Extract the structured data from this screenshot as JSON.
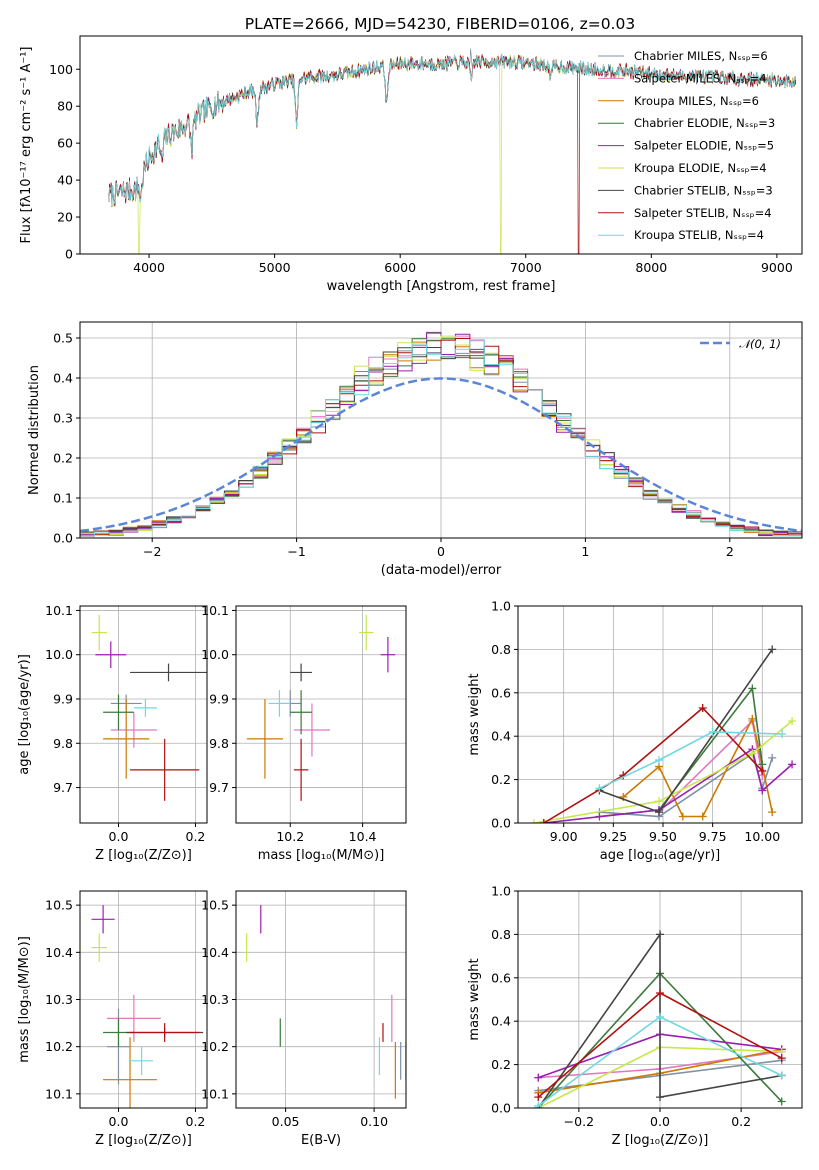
{
  "title": "PLATE=2666, MJD=54230, FIBERID=0106, z=0.03",
  "colors": {
    "Chabrier MILES": "#7f8fa6",
    "Salpeter MILES": "#e377c2",
    "Kroupa MILES": "#cc7a00",
    "Chabrier ELODIE": "#3a7a3a",
    "Salpeter ELODIE": "#9a1fb0",
    "Kroupa ELODIE": "#c6e84a",
    "Chabrier STELIB": "#444444",
    "Salpeter STELIB": "#b01010",
    "Kroupa STELIB": "#6fd8e0"
  },
  "chart_data": [
    {
      "id": "spectrum",
      "type": "line",
      "title": "PLATE=2666, MJD=54230, FIBERID=0106, z=0.03",
      "xlabel": "wavelength [Angstrom, rest frame]",
      "ylabel": "Flux [fλ10⁻¹⁷ erg cm⁻² s⁻¹ A⁻¹]",
      "xlim": [
        3450,
        9200
      ],
      "ylim": [
        0,
        118
      ],
      "xticks": [
        4000,
        5000,
        6000,
        7000,
        8000,
        9000
      ],
      "yticks": [
        0,
        20,
        40,
        60,
        80,
        100
      ],
      "grid": false,
      "legend_position": "top-right",
      "legend": [
        "Chabrier MILES, N_SSP=6",
        "Salpeter MILES, N_SSP=4",
        "Kroupa MILES, N_SSP=6",
        "Chabrier ELODIE, N_SSP=3",
        "Salpeter ELODIE, N_SSP=5",
        "Kroupa ELODIE, N_SSP=4",
        "Chabrier STELIB, N_SSP=3",
        "Salpeter STELIB, N_SSP=4",
        "Kroupa STELIB, N_SSP=4"
      ],
      "continuum": {
        "wavelength": [
          3680,
          3900,
          4000,
          4100,
          4300,
          4500,
          4800,
          5000,
          5200,
          5500,
          5800,
          6000,
          6300,
          6600,
          6900,
          7200,
          7500,
          7800,
          8100,
          8400,
          8700,
          9000,
          9150
        ],
        "flux": [
          32,
          35,
          52,
          62,
          70,
          80,
          88,
          92,
          95,
          97,
          101,
          103,
          103,
          104,
          104,
          102,
          100,
          99,
          97,
          96,
          95,
          94,
          93
        ]
      },
      "absorption_features": [
        {
          "wavelength": 3934,
          "depth": 10
        },
        {
          "wavelength": 4102,
          "depth": 12
        },
        {
          "wavelength": 4340,
          "depth": 15
        },
        {
          "wavelength": 4861,
          "depth": 18
        },
        {
          "wavelength": 5175,
          "depth": 25
        },
        {
          "wavelength": 5893,
          "depth": 20
        },
        {
          "wavelength": 6563,
          "depth": 10
        },
        {
          "wavelength": 7200,
          "depth": 6
        }
      ],
      "emission_features": [
        {
          "wavelength": 6563,
          "height": 15
        }
      ],
      "dropouts": [
        {
          "wavelength": 3920,
          "color": "Kroupa ELODIE"
        },
        {
          "wavelength": 6800,
          "color": "Kroupa ELODIE"
        },
        {
          "wavelength": 7420,
          "color": "Salpeter STELIB"
        }
      ]
    },
    {
      "id": "residuals",
      "type": "histogram",
      "xlabel": "(data-model)/error",
      "ylabel": "Normed distribution",
      "xlim": [
        -2.5,
        2.5
      ],
      "ylim": [
        0,
        0.54
      ],
      "xticks": [
        -2,
        -1,
        0,
        1,
        2
      ],
      "yticks": [
        0.0,
        0.1,
        0.2,
        0.3,
        0.4,
        0.5
      ],
      "grid": true,
      "legend_position": "top-right",
      "legend": [
        "𝒩(0, 1)"
      ],
      "bin_width": 0.1,
      "approx_peak": 0.48,
      "approx_width": 0.85,
      "series": [
        "Chabrier MILES",
        "Salpeter MILES",
        "Kroupa MILES",
        "Chabrier ELODIE",
        "Salpeter ELODIE",
        "Kroupa ELODIE",
        "Chabrier STELIB",
        "Salpeter STELIB",
        "Kroupa STELIB"
      ],
      "reference": {
        "name": "𝒩(0, 1)",
        "mean": 0,
        "sigma": 1,
        "color": "#5b86d6"
      }
    },
    {
      "id": "age_vs_Z",
      "type": "scatter",
      "xlabel": "Z [log₁₀(Z/Z⊙)]",
      "ylabel": "age  [log₁₀(age/yr)]",
      "xlim": [
        -0.1,
        0.23
      ],
      "ylim": [
        9.62,
        10.11
      ],
      "xticks": [
        0.0,
        0.2
      ],
      "yticks": [
        9.7,
        9.8,
        9.9,
        10.0,
        10.1
      ],
      "grid": true,
      "points": [
        {
          "series": "Chabrier MILES",
          "x": 0.02,
          "y": 9.89,
          "xerr": 0.04,
          "yerr": 0.02
        },
        {
          "series": "Salpeter MILES",
          "x": 0.04,
          "y": 9.83,
          "xerr": 0.06,
          "yerr": 0.04
        },
        {
          "series": "Kroupa MILES",
          "x": 0.02,
          "y": 9.81,
          "xerr": 0.06,
          "yerr": 0.09
        },
        {
          "series": "Chabrier ELODIE",
          "x": 0.0,
          "y": 9.87,
          "xerr": 0.04,
          "yerr": 0.04
        },
        {
          "series": "Salpeter ELODIE",
          "x": -0.02,
          "y": 10.0,
          "xerr": 0.04,
          "yerr": 0.03
        },
        {
          "series": "Kroupa ELODIE",
          "x": -0.05,
          "y": 10.05,
          "xerr": 0.02,
          "yerr": 0.04
        },
        {
          "series": "Chabrier STELIB",
          "x": 0.13,
          "y": 9.96,
          "xerr": 0.1,
          "yerr": 0.02
        },
        {
          "series": "Salpeter STELIB",
          "x": 0.12,
          "y": 9.74,
          "xerr": 0.09,
          "yerr": 0.07
        },
        {
          "series": "Kroupa STELIB",
          "x": 0.07,
          "y": 9.88,
          "xerr": 0.03,
          "yerr": 0.02
        }
      ]
    },
    {
      "id": "age_vs_mass",
      "type": "scatter",
      "xlabel": "mass [log₁₀(M/M⊙)]",
      "ylabel": "",
      "xlim": [
        10.05,
        10.52
      ],
      "ylim": [
        9.62,
        10.11
      ],
      "xticks": [
        10.2,
        10.4
      ],
      "yticks": [
        9.7,
        9.8,
        9.9,
        10.0,
        10.1
      ],
      "grid": true,
      "points": [
        {
          "series": "Chabrier MILES",
          "x": 10.2,
          "y": 9.89,
          "xerr": 0.03,
          "yerr": 0.03
        },
        {
          "series": "Salpeter MILES",
          "x": 10.26,
          "y": 9.83,
          "xerr": 0.05,
          "yerr": 0.06
        },
        {
          "series": "Kroupa MILES",
          "x": 10.13,
          "y": 9.81,
          "xerr": 0.05,
          "yerr": 0.09
        },
        {
          "series": "Chabrier ELODIE",
          "x": 10.23,
          "y": 9.87,
          "xerr": 0.03,
          "yerr": 0.05
        },
        {
          "series": "Salpeter ELODIE",
          "x": 10.47,
          "y": 10.0,
          "xerr": 0.02,
          "yerr": 0.04
        },
        {
          "series": "Kroupa ELODIE",
          "x": 10.41,
          "y": 10.05,
          "xerr": 0.02,
          "yerr": 0.04
        },
        {
          "series": "Chabrier STELIB",
          "x": 10.23,
          "y": 9.96,
          "xerr": 0.03,
          "yerr": 0.02
        },
        {
          "series": "Salpeter STELIB",
          "x": 10.23,
          "y": 9.74,
          "xerr": 0.02,
          "yerr": 0.07
        },
        {
          "series": "Kroupa STELIB",
          "x": 10.17,
          "y": 9.89,
          "xerr": 0.03,
          "yerr": 0.03
        }
      ]
    },
    {
      "id": "mass_weight_vs_age",
      "type": "line",
      "xlabel": "age  [log₁₀(age/yr)]",
      "ylabel": "mass weight",
      "xlim": [
        8.77,
        10.2
      ],
      "ylim": [
        0,
        1.0
      ],
      "xticks": [
        9.0,
        9.25,
        9.5,
        9.75,
        10.0
      ],
      "yticks": [
        0.0,
        0.2,
        0.4,
        0.6,
        0.8,
        1.0
      ],
      "grid": true,
      "series": [
        {
          "name": "Chabrier MILES",
          "points": [
            [
              9.18,
              0.05
            ],
            [
              9.48,
              0.03
            ],
            [
              9.95,
              0.32
            ],
            [
              10.0,
              0.16
            ],
            [
              10.05,
              0.3
            ]
          ]
        },
        {
          "name": "Salpeter MILES",
          "points": [
            [
              9.48,
              0.05
            ],
            [
              9.95,
              0.47
            ],
            [
              10.0,
              0.22
            ]
          ]
        },
        {
          "name": "Kroupa MILES",
          "points": [
            [
              9.3,
              0.12
            ],
            [
              9.48,
              0.26
            ],
            [
              9.6,
              0.03
            ],
            [
              9.7,
              0.03
            ],
            [
              9.95,
              0.48
            ],
            [
              10.05,
              0.05
            ]
          ]
        },
        {
          "name": "Chabrier ELODIE",
          "points": [
            [
              9.18,
              0.03
            ],
            [
              9.48,
              0.06
            ],
            [
              9.95,
              0.62
            ],
            [
              10.0,
              0.27
            ]
          ]
        },
        {
          "name": "Salpeter ELODIE",
          "points": [
            [
              8.9,
              0.0
            ],
            [
              9.48,
              0.06
            ],
            [
              9.95,
              0.34
            ],
            [
              10.0,
              0.15
            ],
            [
              10.15,
              0.27
            ]
          ]
        },
        {
          "name": "Kroupa ELODIE",
          "points": [
            [
              8.85,
              0.0
            ],
            [
              9.48,
              0.1
            ],
            [
              9.95,
              0.32
            ],
            [
              10.15,
              0.47
            ]
          ]
        },
        {
          "name": "Chabrier STELIB",
          "points": [
            [
              9.18,
              0.15
            ],
            [
              9.48,
              0.05
            ],
            [
              10.05,
              0.8
            ]
          ]
        },
        {
          "name": "Salpeter STELIB",
          "points": [
            [
              8.9,
              0.0
            ],
            [
              9.3,
              0.22
            ],
            [
              9.7,
              0.53
            ],
            [
              10.0,
              0.24
            ]
          ]
        },
        {
          "name": "Kroupa STELIB",
          "points": [
            [
              9.18,
              0.16
            ],
            [
              9.48,
              0.29
            ],
            [
              9.75,
              0.42
            ],
            [
              10.1,
              0.41
            ]
          ]
        }
      ]
    },
    {
      "id": "mass_vs_Z",
      "type": "scatter",
      "xlabel": "Z [log₁₀(Z/Z⊙)]",
      "ylabel": "mass [log₁₀(M/M⊙)]",
      "xlim": [
        -0.1,
        0.23
      ],
      "ylim": [
        10.07,
        10.53
      ],
      "xticks": [
        0.0,
        0.2
      ],
      "yticks": [
        10.1,
        10.2,
        10.3,
        10.4,
        10.5
      ],
      "grid": true,
      "points": [
        {
          "series": "Chabrier MILES",
          "x": 0.0,
          "y": 10.2,
          "xerr": 0.03,
          "yerr": 0.08
        },
        {
          "series": "Salpeter MILES",
          "x": 0.04,
          "y": 10.26,
          "xerr": 0.07,
          "yerr": 0.05
        },
        {
          "series": "Kroupa MILES",
          "x": 0.03,
          "y": 10.13,
          "xerr": 0.07,
          "yerr": 0.09
        },
        {
          "series": "Chabrier ELODIE",
          "x": 0.0,
          "y": 10.23,
          "xerr": 0.04,
          "yerr": 0.03
        },
        {
          "series": "Salpeter ELODIE",
          "x": -0.04,
          "y": 10.47,
          "xerr": 0.03,
          "yerr": 0.03
        },
        {
          "series": "Kroupa ELODIE",
          "x": -0.05,
          "y": 10.41,
          "xerr": 0.02,
          "yerr": 0.03
        },
        {
          "series": "Chabrier STELIB",
          "x": 0.12,
          "y": 10.23,
          "xerr": 0.1,
          "yerr": 0.01
        },
        {
          "series": "Salpeter STELIB",
          "x": 0.12,
          "y": 10.23,
          "xerr": 0.09,
          "yerr": 0.02
        },
        {
          "series": "Kroupa STELIB",
          "x": 0.06,
          "y": 10.17,
          "xerr": 0.03,
          "yerr": 0.03
        }
      ]
    },
    {
      "id": "mass_vs_ebv",
      "type": "scatter",
      "xlabel": "E(B-V)",
      "ylabel": "",
      "xlim": [
        0.022,
        0.118
      ],
      "ylim": [
        10.07,
        10.53
      ],
      "xticks": [
        0.05,
        0.1
      ],
      "yticks": [
        10.1,
        10.2,
        10.3,
        10.4,
        10.5
      ],
      "grid": true,
      "points": [
        {
          "series": "Chabrier MILES",
          "x": 0.115,
          "y": 10.17,
          "xerr": 0.0,
          "yerr": 0.04
        },
        {
          "series": "Salpeter MILES",
          "x": 0.11,
          "y": 10.26,
          "xerr": 0.0,
          "yerr": 0.05
        },
        {
          "series": "Kroupa MILES",
          "x": 0.112,
          "y": 10.15,
          "xerr": 0.0,
          "yerr": 0.06
        },
        {
          "series": "Chabrier ELODIE",
          "x": 0.047,
          "y": 10.23,
          "xerr": 0.0,
          "yerr": 0.03
        },
        {
          "series": "Salpeter ELODIE",
          "x": 0.036,
          "y": 10.47,
          "xerr": 0.0,
          "yerr": 0.03
        },
        {
          "series": "Kroupa ELODIE",
          "x": 0.028,
          "y": 10.41,
          "xerr": 0.0,
          "yerr": 0.03
        },
        {
          "series": "Chabrier STELIB",
          "x": 0.118,
          "y": 10.17,
          "xerr": 0.0,
          "yerr": 0.04
        },
        {
          "series": "Salpeter STELIB",
          "x": 0.105,
          "y": 10.23,
          "xerr": 0.0,
          "yerr": 0.02
        },
        {
          "series": "Kroupa STELIB",
          "x": 0.103,
          "y": 10.18,
          "xerr": 0.0,
          "yerr": 0.04
        }
      ]
    },
    {
      "id": "mass_weight_vs_Z",
      "type": "line",
      "xlabel": "Z [log₁₀(Z/Z⊙)]",
      "ylabel": "mass weight",
      "xlim": [
        -0.35,
        0.35
      ],
      "ylim": [
        0,
        1.0
      ],
      "xticks": [
        -0.2,
        0.0,
        0.2
      ],
      "yticks": [
        0.0,
        0.2,
        0.4,
        0.6,
        0.8,
        1.0
      ],
      "grid": true,
      "series": [
        {
          "name": "Chabrier MILES",
          "points": [
            [
              -0.3,
              0.08
            ],
            [
              0.0,
              0.15
            ],
            [
              0.3,
              0.22
            ]
          ]
        },
        {
          "name": "Salpeter MILES",
          "points": [
            [
              -0.3,
              0.14
            ],
            [
              0.0,
              0.18
            ],
            [
              0.3,
              0.26
            ]
          ]
        },
        {
          "name": "Kroupa MILES",
          "points": [
            [
              -0.3,
              0.07
            ],
            [
              0.0,
              0.16
            ],
            [
              0.3,
              0.27
            ]
          ]
        },
        {
          "name": "Chabrier ELODIE",
          "points": [
            [
              -0.3,
              0.0
            ],
            [
              0.0,
              0.62
            ],
            [
              0.3,
              0.03
            ]
          ]
        },
        {
          "name": "Salpeter ELODIE",
          "points": [
            [
              -0.3,
              0.14
            ],
            [
              0.0,
              0.34
            ],
            [
              0.3,
              0.27
            ]
          ]
        },
        {
          "name": "Kroupa ELODIE",
          "points": [
            [
              -0.3,
              0.0
            ],
            [
              0.0,
              0.28
            ],
            [
              0.3,
              0.26
            ]
          ]
        },
        {
          "name": "Chabrier STELIB",
          "points": [
            [
              -0.3,
              0.0
            ],
            [
              0.0,
              0.8
            ],
            [
              0.0,
              0.05
            ],
            [
              0.3,
              0.15
            ]
          ]
        },
        {
          "name": "Salpeter STELIB",
          "points": [
            [
              -0.3,
              0.05
            ],
            [
              0.0,
              0.53
            ],
            [
              0.3,
              0.23
            ]
          ]
        },
        {
          "name": "Kroupa STELIB",
          "points": [
            [
              -0.3,
              0.01
            ],
            [
              0.0,
              0.42
            ],
            [
              0.3,
              0.15
            ]
          ]
        }
      ]
    }
  ]
}
